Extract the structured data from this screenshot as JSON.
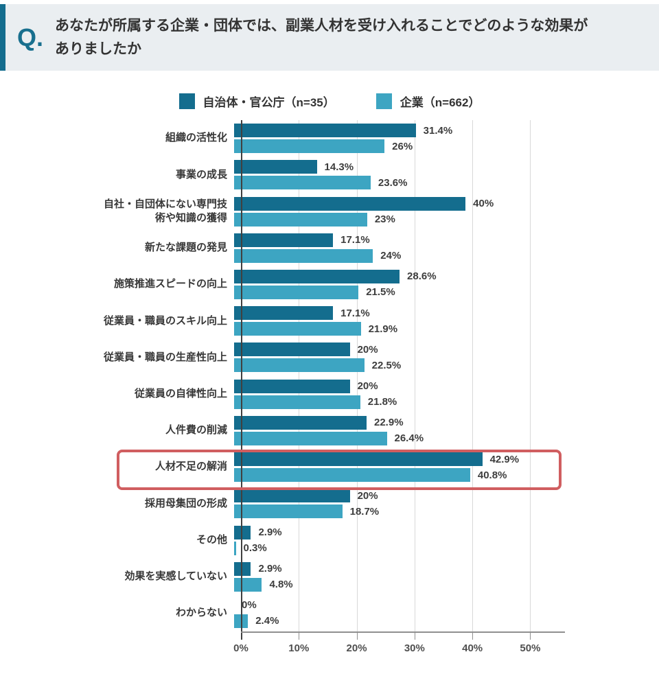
{
  "header": {
    "q_label": "Q.",
    "question": "あなたが所属する企業・団体では、副業人材を受け入れることでどのような効果が\nありましたか"
  },
  "legend": {
    "items": [
      {
        "label": "自治体・官公庁（n=35）",
        "color": "#146d8e"
      },
      {
        "label": "企業（n=662）",
        "color": "#3da5c2"
      }
    ]
  },
  "colors": {
    "accent_dark_teal": "#146d8e",
    "light_teal": "#3da5c2",
    "header_background": "#eaeef1",
    "highlight_red": "#d05e60"
  },
  "chart_data": {
    "type": "bar",
    "orientation": "horizontal",
    "title": "",
    "xlabel": "",
    "ylabel": "",
    "grid": "vertical",
    "legend_position": "top",
    "categories": [
      "組織の活性化",
      "事業の成長",
      "自社・自団体にない専門技\n術や知識の獲得",
      "新たな課題の発見",
      "施策推進スピードの向上",
      "従業員・職員のスキル向上",
      "従業員・職員の生産性向上",
      "従業員の自律性向上",
      "人件費の削減",
      "人材不足の解消",
      "採用母集団の形成",
      "その他",
      "効果を実感していない",
      "わからない"
    ],
    "series": [
      {
        "name": "自治体・官公庁（n=35）",
        "color": "#146d8e",
        "values": [
          31.4,
          14.3,
          40,
          17.1,
          28.6,
          17.1,
          20,
          20,
          22.9,
          42.9,
          20,
          2.9,
          2.9,
          0
        ]
      },
      {
        "name": "企業（n=662）",
        "color": "#3da5c2",
        "values": [
          26,
          23.6,
          23,
          24,
          21.5,
          21.9,
          22.5,
          21.8,
          26.4,
          40.8,
          18.7,
          0.3,
          4.8,
          2.4
        ]
      }
    ],
    "value_labels": [
      [
        "31.4%",
        "26%"
      ],
      [
        "14.3%",
        "23.6%"
      ],
      [
        "40%",
        "23%"
      ],
      [
        "17.1%",
        "24%"
      ],
      [
        "28.6%",
        "21.5%"
      ],
      [
        "17.1%",
        "21.9%"
      ],
      [
        "20%",
        "22.5%"
      ],
      [
        "20%",
        "21.8%"
      ],
      [
        "22.9%",
        "26.4%"
      ],
      [
        "42.9%",
        "40.8%"
      ],
      [
        "20%",
        "18.7%"
      ],
      [
        "2.9%",
        "0.3%"
      ],
      [
        "2.9%",
        "4.8%"
      ],
      [
        "0%",
        "2.4%"
      ]
    ],
    "axis": {
      "max_percent": 56,
      "ticks_percent": [
        0,
        10,
        20,
        30,
        40,
        50
      ],
      "tick_labels": [
        "0%",
        "10%",
        "20%",
        "30%",
        "40%",
        "50%"
      ]
    },
    "highlight": {
      "category": "人材不足の解消",
      "row_index": 9,
      "color": "#d05e60"
    }
  }
}
